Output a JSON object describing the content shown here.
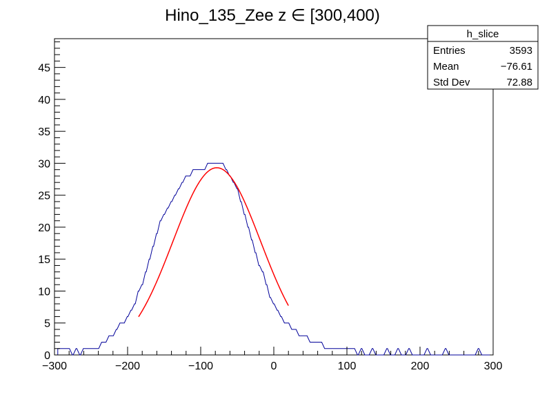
{
  "chart_data": {
    "type": "histogram",
    "title": "Hino_135_Zee z  ∈ [300,400)",
    "xlabel": "",
    "ylabel": "",
    "xlim": [
      -300,
      300
    ],
    "ylim": [
      0,
      49.5
    ],
    "x_ticks": [
      "−300",
      "−200",
      "−100",
      "0",
      "100",
      "200",
      "300"
    ],
    "y_ticks": [
      "0",
      "5",
      "10",
      "15",
      "20",
      "25",
      "30",
      "35",
      "40",
      "45"
    ],
    "histogram_color": "#000099",
    "fit_color": "#ff0000",
    "grid": false,
    "legend_position": "top-right",
    "stats_box": {
      "name": "h_slice",
      "rows": [
        {
          "label": "Entries",
          "value": "3593"
        },
        {
          "label": "Mean",
          "value": "−76.61"
        },
        {
          "label": "Std Dev",
          "value": "72.88"
        }
      ]
    },
    "fit": {
      "function": "gaussian",
      "amplitude": 29.3,
      "mean": -78,
      "sigma": 60,
      "x_range": [
        -185,
        20
      ]
    },
    "histogram": {
      "bin_width": 1,
      "x": [
        -295,
        -290,
        -285,
        -280,
        -275,
        -270,
        -265,
        -260,
        -255,
        -250,
        -245,
        -240,
        -235,
        -230,
        -225,
        -220,
        -215,
        -210,
        -205,
        -200,
        -195,
        -190,
        -185,
        -180,
        -175,
        -170,
        -165,
        -160,
        -155,
        -150,
        -145,
        -140,
        -135,
        -130,
        -125,
        -120,
        -115,
        -110,
        -105,
        -100,
        -95,
        -90,
        -85,
        -80,
        -75,
        -70,
        -65,
        -60,
        -55,
        -50,
        -45,
        -40,
        -35,
        -30,
        -25,
        -20,
        -15,
        -10,
        -5,
        0,
        5,
        10,
        15,
        20,
        25,
        30,
        35,
        40,
        45,
        50,
        55,
        60,
        65,
        70,
        75,
        80,
        85,
        90,
        95,
        100,
        105,
        110,
        115,
        120,
        125,
        130,
        135,
        140,
        145,
        150,
        155,
        160,
        165,
        170,
        175,
        180,
        185,
        190,
        195,
        200,
        205,
        210,
        215,
        220,
        225,
        230,
        235,
        240,
        245,
        250,
        255,
        260,
        265,
        270,
        275,
        280,
        285,
        290,
        295
      ],
      "counts": [
        1,
        1,
        1,
        1,
        0,
        1,
        0,
        1,
        1,
        1,
        1,
        1,
        2,
        2,
        3,
        3,
        4,
        5,
        5,
        6,
        7,
        8,
        10,
        11,
        13,
        15,
        17,
        19,
        21,
        22,
        23,
        24,
        25,
        26,
        27,
        28,
        28,
        29,
        29,
        29,
        29,
        30,
        30,
        30,
        30,
        30,
        29,
        28,
        27,
        26,
        24,
        22,
        20,
        18,
        16,
        14,
        13,
        11,
        9,
        8,
        7,
        6,
        5,
        5,
        4,
        4,
        3,
        3,
        3,
        2,
        2,
        2,
        2,
        1,
        1,
        1,
        1,
        1,
        1,
        1,
        1,
        1,
        0,
        1,
        0,
        0,
        1,
        0,
        0,
        0,
        1,
        0,
        0,
        1,
        0,
        0,
        1,
        0,
        0,
        0,
        0,
        1,
        0,
        0,
        0,
        0,
        1,
        0,
        0,
        0,
        0,
        0,
        0,
        0,
        0,
        1,
        0,
        0,
        0
      ]
    }
  }
}
